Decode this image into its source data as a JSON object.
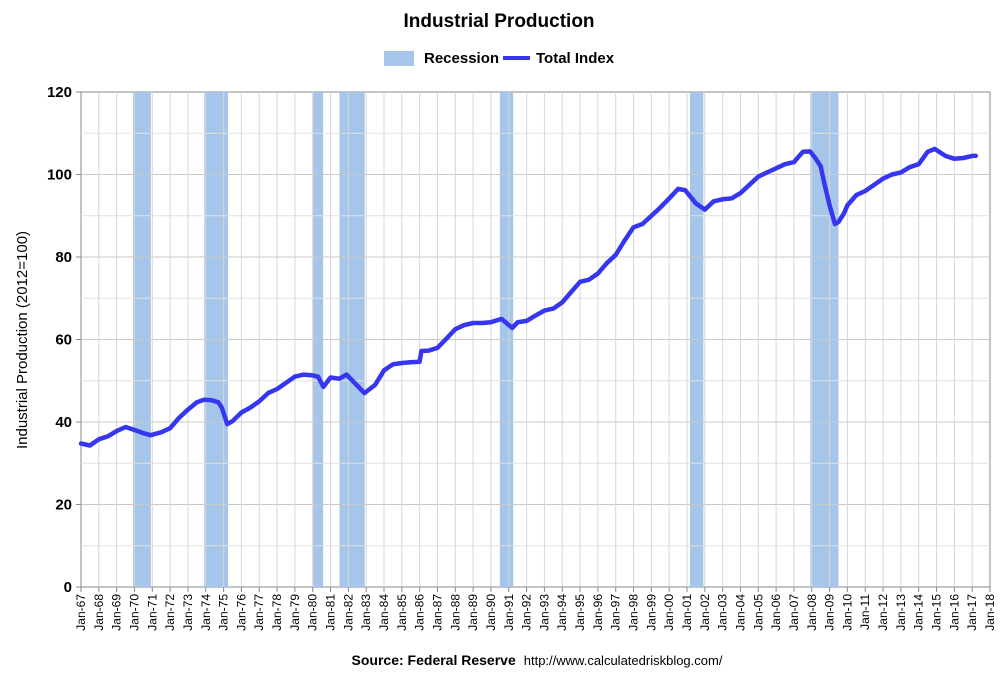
{
  "chart_data": {
    "type": "line",
    "title": "Industrial Production",
    "ylabel": "Industrial Production (2012=100)",
    "xlabel": "",
    "ylim": [
      0,
      120
    ],
    "yticks": [
      0,
      20,
      40,
      60,
      80,
      100,
      120
    ],
    "xlim": [
      1967.0,
      2018.0
    ],
    "xtick_labels": [
      "Jan-67",
      "Jan-68",
      "Jan-69",
      "Jan-70",
      "Jan-71",
      "Jan-72",
      "Jan-73",
      "Jan-74",
      "Jan-75",
      "Jan-76",
      "Jan-77",
      "Jan-78",
      "Jan-79",
      "Jan-80",
      "Jan-81",
      "Jan-82",
      "Jan-83",
      "Jan-84",
      "Jan-85",
      "Jan-86",
      "Jan-87",
      "Jan-88",
      "Jan-89",
      "Jan-90",
      "Jan-91",
      "Jan-92",
      "Jan-93",
      "Jan-94",
      "Jan-95",
      "Jan-96",
      "Jan-97",
      "Jan-98",
      "Jan-99",
      "Jan-00",
      "Jan-01",
      "Jan-02",
      "Jan-03",
      "Jan-04",
      "Jan-05",
      "Jan-06",
      "Jan-07",
      "Jan-08",
      "Jan-09",
      "Jan-10",
      "Jan-11",
      "Jan-12",
      "Jan-13",
      "Jan-14",
      "Jan-15",
      "Jan-16",
      "Jan-17",
      "Jan-18"
    ],
    "grid": true,
    "legend_position": "top-center",
    "legend": [
      {
        "name": "Recession",
        "kind": "band",
        "color": "#a6c5ea"
      },
      {
        "name": "Total Index",
        "kind": "line",
        "color": "#3636f0"
      }
    ],
    "recessions": [
      {
        "start": 1969.917,
        "end": 1970.917
      },
      {
        "start": 1973.917,
        "end": 1975.25
      },
      {
        "start": 1980.0,
        "end": 1980.583
      },
      {
        "start": 1981.5,
        "end": 1982.917
      },
      {
        "start": 1990.5,
        "end": 1991.25
      },
      {
        "start": 2001.167,
        "end": 2001.917
      },
      {
        "start": 2007.917,
        "end": 2009.5
      }
    ],
    "series": [
      {
        "name": "Total Index",
        "x": [
          1967.0,
          1967.5,
          1968.0,
          1968.5,
          1969.0,
          1969.5,
          1969.9,
          1970.5,
          1970.9,
          1971.5,
          1972.0,
          1972.5,
          1973.0,
          1973.5,
          1973.9,
          1974.3,
          1974.7,
          1974.9,
          1975.2,
          1975.5,
          1976.0,
          1976.5,
          1977.0,
          1977.5,
          1978.0,
          1978.5,
          1979.0,
          1979.5,
          1980.0,
          1980.3,
          1980.6,
          1981.0,
          1981.5,
          1981.9,
          1982.5,
          1982.9,
          1983.5,
          1984.0,
          1984.5,
          1985.0,
          1985.5,
          1986.0,
          1986.1,
          1986.5,
          1987.0,
          1987.5,
          1988.0,
          1988.5,
          1989.0,
          1989.5,
          1990.0,
          1990.6,
          1991.0,
          1991.2,
          1991.5,
          1992.0,
          1992.5,
          1993.0,
          1993.5,
          1994.0,
          1994.5,
          1995.0,
          1995.5,
          1996.0,
          1996.5,
          1997.0,
          1997.5,
          1998.0,
          1998.5,
          1999.0,
          1999.5,
          2000.0,
          2000.5,
          2000.9,
          2001.5,
          2002.0,
          2002.5,
          2003.0,
          2003.5,
          2004.0,
          2004.5,
          2005.0,
          2005.5,
          2006.0,
          2006.5,
          2007.0,
          2007.5,
          2007.9,
          2008.2,
          2008.5,
          2008.7,
          2009.0,
          2009.3,
          2009.5,
          2009.8,
          2010.0,
          2010.5,
          2011.0,
          2011.5,
          2012.0,
          2012.5,
          2013.0,
          2013.5,
          2014.0,
          2014.5,
          2014.9,
          2015.5,
          2016.0,
          2016.5,
          2017.0,
          2017.2
        ],
        "values": [
          34.8,
          34.3,
          35.8,
          36.5,
          37.8,
          38.8,
          38.2,
          37.3,
          36.8,
          37.5,
          38.5,
          41.0,
          43.0,
          44.8,
          45.4,
          45.3,
          44.8,
          43.5,
          39.5,
          40.2,
          42.3,
          43.5,
          45.0,
          47.0,
          48.0,
          49.5,
          51.0,
          51.5,
          51.3,
          51.0,
          48.5,
          50.8,
          50.5,
          51.5,
          48.8,
          47.0,
          49.0,
          52.5,
          54.0,
          54.3,
          54.5,
          54.6,
          57.2,
          57.3,
          58.0,
          60.2,
          62.5,
          63.5,
          64.0,
          64.0,
          64.2,
          65.0,
          63.5,
          62.8,
          64.2,
          64.5,
          65.8,
          67.0,
          67.5,
          69.0,
          71.5,
          74.0,
          74.5,
          76.0,
          78.5,
          80.5,
          84.0,
          87.2,
          88.0,
          90.0,
          92.0,
          94.2,
          96.5,
          96.2,
          93.0,
          91.5,
          93.5,
          94.0,
          94.2,
          95.5,
          97.5,
          99.5,
          100.5,
          101.5,
          102.5,
          103.0,
          105.5,
          105.6,
          104.0,
          102.0,
          98.0,
          92.5,
          88.0,
          88.5,
          90.5,
          92.5,
          95.0,
          96.0,
          97.5,
          99.0,
          100.0,
          100.5,
          101.8,
          102.5,
          105.5,
          106.2,
          104.5,
          103.8,
          104.0,
          104.5,
          104.5
        ]
      }
    ]
  },
  "source": {
    "label": "Source: Federal Reserve",
    "url": "http://www.calculatedriskblog.com/"
  }
}
